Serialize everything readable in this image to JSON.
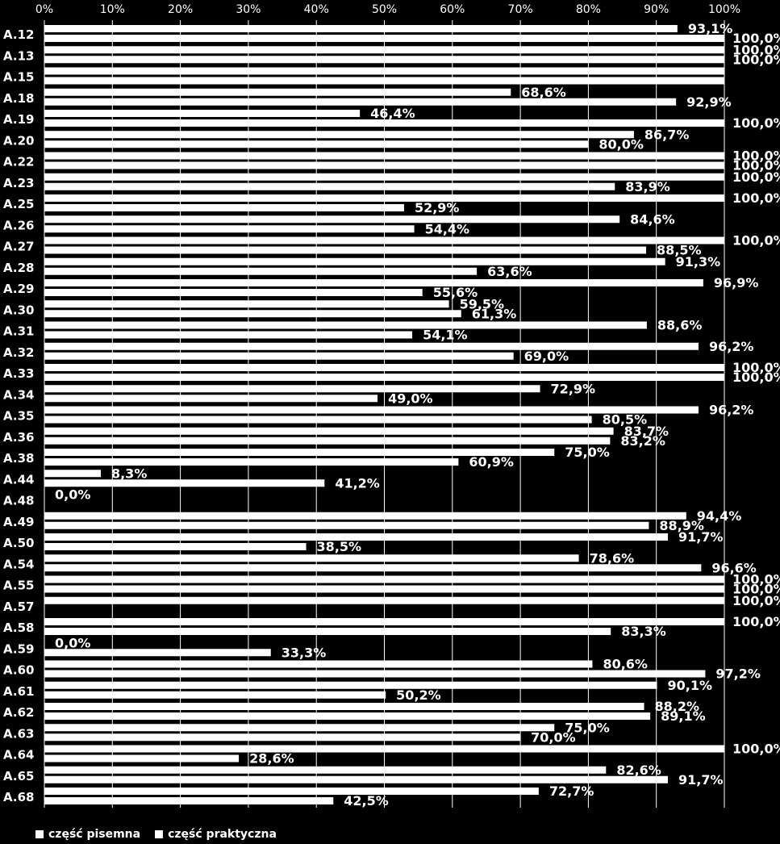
{
  "chart_data": {
    "type": "bar",
    "orientation": "horizontal",
    "categories": [
      "A.12",
      "A.13",
      "A.15",
      "A.18",
      "A.19",
      "A.20",
      "A.22",
      "A.23",
      "A.25",
      "A.26",
      "A.27",
      "A.28",
      "A.29",
      "A.30",
      "A.31",
      "A.32",
      "A.33",
      "A.34",
      "A.35",
      "A.36",
      "A.38",
      "A.44",
      "A.48",
      "A.49",
      "A.50",
      "A.54",
      "A.55",
      "A.57",
      "A.58",
      "A.59",
      "A.60",
      "A.61",
      "A.62",
      "A.63",
      "A.64",
      "A.65",
      "A.68"
    ],
    "series": [
      {
        "name": "część pisemna",
        "values": [
          93.1,
          100,
          100,
          68.6,
          46.4,
          86.7,
          100,
          100,
          100,
          84.6,
          100,
          91.3,
          96.9,
          59.5,
          88.6,
          96.2,
          100,
          72.9,
          96.2,
          83.7,
          75.0,
          8.3,
          0.0,
          94.4,
          91.7,
          78.6,
          100,
          100,
          100,
          0.0,
          80.6,
          90.1,
          88.2,
          75.0,
          100,
          82.6,
          72.7
        ],
        "labels": [
          "93,1%",
          "100,0%",
          "",
          "68,6%",
          "46,4%",
          "86,7%",
          "100,0%",
          "100,0%",
          "100,0%",
          "84,6%",
          "100,0%",
          "91,3%",
          "96,9%",
          "59,5%",
          "88,6%",
          "96,2%",
          "100,0%",
          "72,9%",
          "96,2%",
          "83,7%",
          "75,0%",
          "8,3%",
          "0,0%",
          "94,4%",
          "91,7%",
          "78,6%",
          "100,0%",
          "100,0%",
          "100,0%",
          "0,0%",
          "80,6%",
          "90,1%",
          "88,2%",
          "75,0%",
          "100,0%",
          "82,6%",
          "72,7%"
        ]
      },
      {
        "name": "część praktyczna",
        "values": [
          100,
          100,
          100,
          92.9,
          100,
          80.0,
          100,
          83.9,
          52.9,
          54.4,
          88.5,
          63.6,
          55.6,
          61.3,
          54.1,
          69.0,
          100,
          49.0,
          80.5,
          83.2,
          60.9,
          41.2,
          null,
          88.9,
          38.5,
          96.6,
          100,
          null,
          83.3,
          33.3,
          97.2,
          50.2,
          89.1,
          70.0,
          28.6,
          91.7,
          42.5
        ],
        "labels": [
          "100,0%",
          "100,0%",
          "",
          "92,9%",
          "100,0%",
          "80,0%",
          "100,0%",
          "83,9%",
          "52,9%",
          "54,4%",
          "88,5%",
          "63,6%",
          "55,6%",
          "61,3%",
          "54,1%",
          "69,0%",
          "100,0%",
          "49,0%",
          "80,5%",
          "83,2%",
          "60,9%",
          "41,2%",
          "",
          "88,9%",
          "38,5%",
          "96,6%",
          "100,0%",
          "",
          "83,3%",
          "33,3%",
          "97,2%",
          "50,2%",
          "89,1%",
          "70,0%",
          "28,6%",
          "91,7%",
          "42,5%"
        ]
      }
    ],
    "xticks": [
      "0%",
      "10%",
      "20%",
      "30%",
      "40%",
      "50%",
      "60%",
      "70%",
      "80%",
      "90%",
      "100%"
    ],
    "xlim": [
      0,
      100
    ],
    "legend": [
      "część pisemna",
      "część praktyczna"
    ],
    "legend_position": "bottom-left",
    "colors": {
      "background": "#000000",
      "bars": "#ffffff",
      "text": "#ffffff"
    }
  }
}
